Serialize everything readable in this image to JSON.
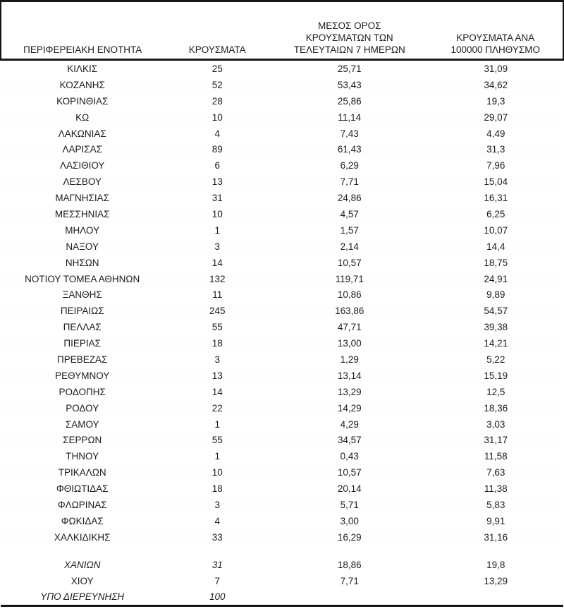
{
  "page": {
    "background_color": "#ffffff",
    "text_color": "#1c1c1c",
    "border_color": "#161616"
  },
  "table": {
    "headers": [
      "ΠΕΡΙΦΕΡΕΙΑΚΗ ΕΝΟΤΗΤΑ",
      "ΚΡΟΥΣΜΑΤΑ",
      "ΜΕΣΟΣ ΟΡΟΣ\nΚΡΟΥΣΜΑΤΩΝ ΤΩΝ\nΤΕΛΕΥΤΑΙΩΝ 7 ΗΜΕΡΩΝ",
      "ΚΡΟΥΣΜΑΤΑ ΑΝΑ\n100000 ΠΛΗΘΥΣΜΟ"
    ],
    "rows": [
      {
        "cells": [
          "ΚΙΛΚΙΣ",
          "25",
          "25,71",
          "31,09"
        ]
      },
      {
        "cells": [
          "ΚΟΖΑΝΗΣ",
          "52",
          "53,43",
          "34,62"
        ]
      },
      {
        "cells": [
          "ΚΟΡΙΝΘΙΑΣ",
          "28",
          "25,86",
          "19,3"
        ]
      },
      {
        "cells": [
          "ΚΩ",
          "10",
          "11,14",
          "29,07"
        ]
      },
      {
        "cells": [
          "ΛΑΚΩΝΙΑΣ",
          "4",
          "7,43",
          "4,49"
        ]
      },
      {
        "cells": [
          "ΛΑΡΙΣΑΣ",
          "89",
          "61,43",
          "31,3"
        ]
      },
      {
        "cells": [
          "ΛΑΣΙΘΙΟΥ",
          "6",
          "6,29",
          "7,96"
        ]
      },
      {
        "cells": [
          "ΛΕΣΒΟΥ",
          "13",
          "7,71",
          "15,04"
        ]
      },
      {
        "cells": [
          "ΜΑΓΝΗΣΙΑΣ",
          "31",
          "24,86",
          "16,31"
        ]
      },
      {
        "cells": [
          "ΜΕΣΣΗΝΙΑΣ",
          "10",
          "4,57",
          "6,25"
        ]
      },
      {
        "cells": [
          "ΜΗΛΟΥ",
          "1",
          "1,57",
          "10,07"
        ]
      },
      {
        "cells": [
          "ΝΑΞΟΥ",
          "3",
          "2,14",
          "14,4"
        ]
      },
      {
        "cells": [
          "ΝΗΣΩΝ",
          "14",
          "10,57",
          "18,75"
        ]
      },
      {
        "cells": [
          "ΝΟΤΙΟΥ ΤΟΜΕΑ ΑΘΗΝΩΝ",
          "132",
          "119,71",
          "24,91"
        ]
      },
      {
        "cells": [
          "ΞΑΝΘΗΣ",
          "11",
          "10,86",
          "9,89"
        ]
      },
      {
        "cells": [
          "ΠΕΙΡΑΙΩΣ",
          "245",
          "163,86",
          "54,57"
        ]
      },
      {
        "cells": [
          "ΠΕΛΛΑΣ",
          "55",
          "47,71",
          "39,38"
        ]
      },
      {
        "cells": [
          "ΠΙΕΡΙΑΣ",
          "18",
          "13,00",
          "14,21"
        ]
      },
      {
        "cells": [
          "ΠΡΕΒΕΖΑΣ",
          "3",
          "1,29",
          "5,22"
        ]
      },
      {
        "cells": [
          "ΡΕΘΥΜΝΟΥ",
          "13",
          "13,14",
          "15,19"
        ]
      },
      {
        "cells": [
          "ΡΟΔΟΠΗΣ",
          "14",
          "13,29",
          "12,5"
        ]
      },
      {
        "cells": [
          "ΡΟΔΟΥ",
          "22",
          "14,29",
          "18,36"
        ]
      },
      {
        "cells": [
          "ΣΑΜΟΥ",
          "1",
          "4,29",
          "3,03"
        ]
      },
      {
        "cells": [
          "ΣΕΡΡΩΝ",
          "55",
          "34,57",
          "31,17"
        ]
      },
      {
        "cells": [
          "ΤΗΝΟΥ",
          "1",
          "0,43",
          "11,58"
        ]
      },
      {
        "cells": [
          "ΤΡΙΚΑΛΩΝ",
          "10",
          "10,57",
          "7,63"
        ]
      },
      {
        "cells": [
          "ΦΘΙΩΤΙΔΑΣ",
          "18",
          "20,14",
          "11,38"
        ]
      },
      {
        "cells": [
          "ΦΛΩΡΙΝΑΣ",
          "3",
          "5,71",
          "5,83"
        ]
      },
      {
        "cells": [
          "ΦΩΚΙΔΑΣ",
          "4",
          "3,00",
          "9,91"
        ]
      },
      {
        "cells": [
          "ΧΑΛΚΙΔΙΚΗΣ",
          "33",
          "16,29",
          "31,16"
        ]
      }
    ],
    "footer_rows": [
      {
        "cells": [
          "ΧΑΝΙΩΝ",
          "31",
          "18,86",
          "19,8"
        ],
        "italic": true
      },
      {
        "cells": [
          "ΧΙΟΥ",
          "7",
          "7,71",
          "13,29"
        ]
      },
      {
        "cells": [
          "ΥΠΟ ΔΙΕΡΕΥΝΗΣΗ",
          "100",
          "",
          ""
        ],
        "italic": true
      }
    ]
  }
}
